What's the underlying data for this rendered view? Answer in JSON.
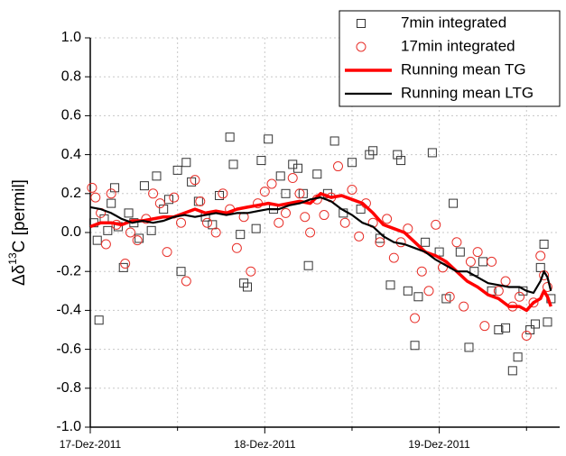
{
  "chart_data": {
    "type": "scatter",
    "ylabel": {
      "prefix": "Δδ",
      "sup": "13",
      "suffix": "C [permil]"
    },
    "xlim": [
      0,
      2.69
    ],
    "xticks": [
      {
        "value": 0,
        "label": "17-Dez-2011"
      },
      {
        "value": 1,
        "label": "18-Dez-2011"
      },
      {
        "value": 2,
        "label": "19-Dez-2011"
      }
    ],
    "xminor": [
      0.5,
      1.5,
      2.5
    ],
    "ylim": [
      -1,
      1
    ],
    "yticks": [
      {
        "value": -1,
        "label": "-1.0"
      },
      -0.8,
      -0.6,
      -0.4,
      -0.2,
      {
        "value": 0,
        "label": "0.0"
      },
      0.2,
      0.4,
      0.6,
      0.8,
      {
        "value": 1,
        "label": "1.0"
      }
    ],
    "grid": true,
    "legend": "upper right",
    "series": [
      {
        "name": "7min integrated",
        "type": "scatter",
        "marker": "square",
        "color": "#333333",
        "x": [
          0.02,
          0.04,
          0.05,
          0.08,
          0.1,
          0.12,
          0.14,
          0.16,
          0.19,
          0.22,
          0.25,
          0.28,
          0.31,
          0.35,
          0.38,
          0.42,
          0.45,
          0.5,
          0.52,
          0.55,
          0.58,
          0.62,
          0.66,
          0.7,
          0.74,
          0.8,
          0.82,
          0.86,
          0.88,
          0.9,
          0.95,
          0.98,
          1.02,
          1.05,
          1.09,
          1.12,
          1.16,
          1.19,
          1.22,
          1.25,
          1.3,
          1.36,
          1.4,
          1.45,
          1.5,
          1.55,
          1.6,
          1.62,
          1.66,
          1.72,
          1.76,
          1.78,
          1.82,
          1.86,
          1.88,
          1.92,
          1.96,
          2.0,
          2.04,
          2.08,
          2.12,
          2.17,
          2.2,
          2.25,
          2.3,
          2.34,
          2.38,
          2.42,
          2.45,
          2.48,
          2.52,
          2.55,
          2.58,
          2.6,
          2.62,
          2.64
        ],
        "values": [
          0.05,
          -0.04,
          -0.45,
          0.07,
          0.01,
          0.15,
          0.23,
          0.03,
          -0.18,
          0.1,
          0.05,
          -0.03,
          0.24,
          0.01,
          0.29,
          0.12,
          0.17,
          0.32,
          -0.2,
          0.36,
          0.26,
          0.16,
          0.08,
          0.04,
          0.19,
          0.49,
          0.35,
          -0.01,
          -0.26,
          -0.28,
          0.02,
          0.37,
          0.48,
          0.12,
          0.29,
          0.2,
          0.35,
          0.33,
          0.2,
          -0.17,
          0.3,
          0.2,
          0.47,
          0.1,
          0.36,
          0.12,
          0.4,
          0.42,
          -0.03,
          -0.27,
          0.4,
          0.37,
          -0.3,
          -0.58,
          -0.33,
          -0.05,
          0.41,
          -0.1,
          -0.34,
          0.15,
          -0.1,
          -0.59,
          -0.2,
          -0.15,
          -0.3,
          -0.5,
          -0.49,
          -0.71,
          -0.64,
          -0.3,
          -0.5,
          -0.47,
          -0.18,
          -0.06,
          -0.46,
          -0.34
        ]
      },
      {
        "name": "17min integrated",
        "type": "scatter",
        "marker": "circle",
        "color": "#e8312b",
        "x": [
          0.01,
          0.03,
          0.06,
          0.09,
          0.12,
          0.15,
          0.2,
          0.23,
          0.27,
          0.32,
          0.36,
          0.4,
          0.44,
          0.48,
          0.52,
          0.55,
          0.6,
          0.63,
          0.67,
          0.72,
          0.76,
          0.8,
          0.84,
          0.88,
          0.92,
          0.96,
          1.0,
          1.04,
          1.08,
          1.12,
          1.16,
          1.2,
          1.23,
          1.26,
          1.3,
          1.34,
          1.38,
          1.42,
          1.46,
          1.5,
          1.54,
          1.58,
          1.62,
          1.66,
          1.7,
          1.74,
          1.78,
          1.82,
          1.86,
          1.9,
          1.94,
          1.98,
          2.02,
          2.06,
          2.1,
          2.14,
          2.18,
          2.22,
          2.26,
          2.3,
          2.34,
          2.38,
          2.42,
          2.46,
          2.5,
          2.54,
          2.58,
          2.6,
          2.62
        ],
        "values": [
          0.23,
          0.18,
          0.1,
          -0.06,
          0.2,
          0.04,
          -0.16,
          0.0,
          -0.04,
          0.07,
          0.2,
          0.15,
          -0.1,
          0.18,
          0.05,
          -0.25,
          0.27,
          0.16,
          0.05,
          0.0,
          0.2,
          0.12,
          -0.08,
          0.08,
          -0.2,
          0.15,
          0.21,
          0.25,
          0.05,
          0.1,
          0.28,
          0.2,
          0.08,
          0.0,
          0.17,
          0.09,
          0.18,
          0.34,
          0.05,
          0.22,
          -0.02,
          0.15,
          0.05,
          -0.05,
          0.07,
          -0.13,
          -0.05,
          0.02,
          -0.44,
          -0.2,
          -0.3,
          0.04,
          -0.18,
          -0.33,
          -0.05,
          -0.38,
          -0.15,
          -0.1,
          -0.48,
          -0.15,
          -0.3,
          -0.25,
          -0.38,
          -0.33,
          -0.53,
          -0.36,
          -0.12,
          -0.22,
          -0.28
        ]
      },
      {
        "name": "Running mean TG",
        "type": "line",
        "color": "#ff0000",
        "width": 3.5,
        "x": [
          0,
          0.06,
          0.12,
          0.18,
          0.24,
          0.3,
          0.36,
          0.42,
          0.48,
          0.54,
          0.6,
          0.66,
          0.72,
          0.78,
          0.84,
          0.9,
          0.96,
          1.02,
          1.08,
          1.14,
          1.2,
          1.26,
          1.32,
          1.38,
          1.44,
          1.5,
          1.56,
          1.62,
          1.68,
          1.74,
          1.8,
          1.86,
          1.92,
          1.98,
          2.04,
          2.1,
          2.16,
          2.22,
          2.28,
          2.34,
          2.4,
          2.46,
          2.5,
          2.54,
          2.58,
          2.6,
          2.62,
          2.64
        ],
        "values": [
          0.03,
          0.05,
          0.05,
          0.04,
          0.06,
          0.06,
          0.07,
          0.08,
          0.08,
          0.1,
          0.12,
          0.1,
          0.11,
          0.1,
          0.12,
          0.13,
          0.14,
          0.15,
          0.14,
          0.15,
          0.16,
          0.15,
          0.2,
          0.18,
          0.19,
          0.17,
          0.15,
          0.1,
          0.04,
          0.02,
          0.0,
          -0.05,
          -0.1,
          -0.12,
          -0.15,
          -0.2,
          -0.25,
          -0.28,
          -0.32,
          -0.34,
          -0.38,
          -0.38,
          -0.4,
          -0.36,
          -0.34,
          -0.3,
          -0.33,
          -0.38
        ]
      },
      {
        "name": "Running mean LTG",
        "type": "line",
        "color": "#000000",
        "width": 2.2,
        "x": [
          0,
          0.06,
          0.12,
          0.18,
          0.24,
          0.3,
          0.36,
          0.42,
          0.48,
          0.54,
          0.6,
          0.66,
          0.72,
          0.78,
          0.84,
          0.9,
          0.96,
          1.02,
          1.08,
          1.14,
          1.2,
          1.26,
          1.32,
          1.38,
          1.44,
          1.5,
          1.56,
          1.62,
          1.68,
          1.74,
          1.8,
          1.86,
          1.92,
          1.98,
          2.04,
          2.1,
          2.16,
          2.22,
          2.28,
          2.34,
          2.4,
          2.46,
          2.5,
          2.54,
          2.58,
          2.6,
          2.62,
          2.64
        ],
        "values": [
          0.13,
          0.12,
          0.1,
          0.07,
          0.05,
          0.06,
          0.05,
          0.06,
          0.08,
          0.09,
          0.08,
          0.09,
          0.1,
          0.09,
          0.1,
          0.1,
          0.11,
          0.12,
          0.12,
          0.14,
          0.15,
          0.17,
          0.18,
          0.16,
          0.12,
          0.09,
          0.05,
          0.03,
          -0.02,
          -0.05,
          -0.06,
          -0.08,
          -0.1,
          -0.14,
          -0.17,
          -0.2,
          -0.2,
          -0.23,
          -0.26,
          -0.27,
          -0.28,
          -0.28,
          -0.3,
          -0.31,
          -0.25,
          -0.2,
          -0.23,
          -0.3
        ]
      }
    ]
  }
}
